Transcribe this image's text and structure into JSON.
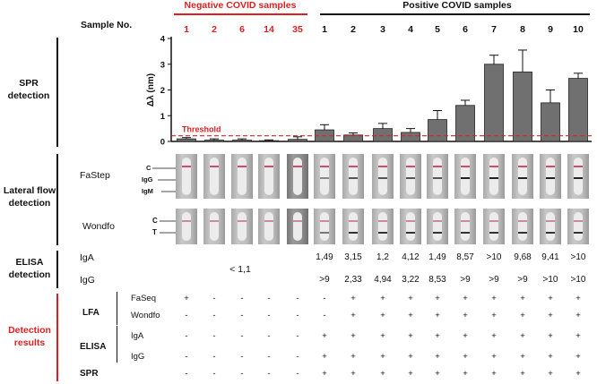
{
  "header": {
    "sample_label": "Sample No.",
    "negative_label": "Negative COVID samples",
    "positive_label": "Positive COVID samples",
    "samples": [
      "1",
      "2",
      "6",
      "14",
      "35",
      "1",
      "2",
      "3",
      "4",
      "5",
      "6",
      "7",
      "8",
      "9",
      "10"
    ]
  },
  "sections": {
    "spr": "SPR detection",
    "lateral": "Lateral flow detection",
    "elisa": "ELISA detection",
    "results": "Detection results"
  },
  "lateral_flow": {
    "fastep": "FaStep",
    "wondfo": "Wondfo",
    "fastep_marks": [
      "C",
      "IgG",
      "IgM"
    ],
    "wondfo_marks": [
      "C",
      "T"
    ]
  },
  "chart_data": {
    "type": "bar",
    "categories": [
      "N1",
      "N2",
      "N6",
      "N14",
      "N35",
      "P1",
      "P2",
      "P3",
      "P4",
      "P5",
      "P6",
      "P7",
      "P8",
      "P9",
      "P10"
    ],
    "values": [
      0.1,
      0.05,
      0.05,
      0.03,
      0.08,
      0.45,
      0.25,
      0.5,
      0.35,
      0.85,
      1.4,
      3.0,
      2.7,
      1.5,
      2.45
    ],
    "errors": [
      0.05,
      0.05,
      0.05,
      0.03,
      0.1,
      0.2,
      0.08,
      0.2,
      0.15,
      0.35,
      0.2,
      0.35,
      0.85,
      0.5,
      0.2
    ],
    "ylabel": "Δλ (nm)",
    "ylim": [
      0,
      4
    ],
    "yticks": [
      "0",
      "1",
      "2",
      "3",
      "4"
    ],
    "threshold": 0.22,
    "threshold_label": "Threshold",
    "bar_color": "#707070",
    "threshold_color": "#e02020"
  },
  "elisa": {
    "iga_label": "IgA",
    "igg_label": "IgG",
    "negative_value": "< 1,1",
    "iga": [
      "1,49",
      "3,15",
      "1,2",
      "4,12",
      "1,49",
      "8,57",
      ">10",
      "9,68",
      "9,41",
      ">10"
    ],
    "igg": [
      ">9",
      "2,33",
      "4,94",
      "3,22",
      "8,53",
      ">9",
      ">9",
      ">9",
      ">10",
      ">10"
    ]
  },
  "results": {
    "lfa_label": "LFA",
    "elisa_label": "ELISA",
    "spr_label": "SPR",
    "sub_labels": {
      "faseq": "FaSeq",
      "wondfo": "Wondfo",
      "iga": "IgA",
      "igg": "IgG"
    },
    "faseq": [
      "+",
      "-",
      "-",
      "-",
      "-",
      "-",
      "+",
      "+",
      "+",
      "+",
      "+",
      "+",
      "+",
      "+",
      "+"
    ],
    "wondfo": [
      "-",
      "-",
      "-",
      "-",
      "-",
      "-",
      "+",
      "+",
      "+",
      "+",
      "+",
      "+",
      "+",
      "+",
      "+"
    ],
    "iga": [
      "-",
      "-",
      "-",
      "-",
      "-",
      "+",
      "+",
      "+",
      "+",
      "+",
      "+",
      "+",
      "+",
      "+",
      "+"
    ],
    "igg": [
      "-",
      "-",
      "-",
      "-",
      "-",
      "+",
      "+",
      "+",
      "+",
      "+",
      "+",
      "+",
      "+",
      "+",
      "+"
    ],
    "spr": [
      "-",
      "-",
      "-",
      "-",
      "-",
      "+",
      "+",
      "+",
      "+",
      "+",
      "+",
      "+",
      "+",
      "+",
      "+"
    ]
  }
}
